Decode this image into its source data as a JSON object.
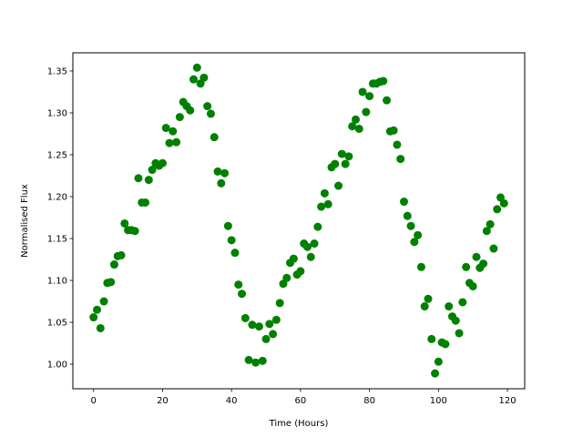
{
  "chart_data": {
    "type": "scatter",
    "title": "",
    "xlabel": "Time (Hours)",
    "ylabel": "Normalised Flux",
    "xlim": [
      -6,
      125
    ],
    "ylim": [
      0.9707,
      1.3717
    ],
    "xticks": [
      0,
      20,
      40,
      60,
      80,
      100,
      120
    ],
    "xtick_labels": [
      "0",
      "20",
      "40",
      "60",
      "80",
      "100",
      "120"
    ],
    "yticks": [
      1.0,
      1.05,
      1.1,
      1.15,
      1.2,
      1.25,
      1.3,
      1.35
    ],
    "ytick_labels": [
      "1.00",
      "1.05",
      "1.10",
      "1.15",
      "1.20",
      "1.25",
      "1.30",
      "1.35"
    ],
    "grid": false,
    "marker_color": "#008000",
    "x": [
      0,
      1,
      2,
      3,
      4,
      5,
      6,
      7,
      8,
      9,
      10,
      11,
      12,
      13,
      14,
      15,
      16,
      17,
      18,
      19,
      20,
      21,
      22,
      23,
      24,
      25,
      26,
      27,
      28,
      29,
      30,
      31,
      32,
      33,
      34,
      35,
      36,
      37,
      38,
      39,
      40,
      41,
      42,
      43,
      44,
      45,
      46,
      47,
      48,
      49,
      50,
      51,
      52,
      53,
      54,
      55,
      56,
      57,
      58,
      59,
      60,
      61,
      62,
      63,
      64,
      65,
      66,
      67,
      68,
      69,
      70,
      71,
      72,
      73,
      74,
      75,
      76,
      77,
      78,
      79,
      80,
      81,
      82,
      83,
      84,
      85,
      86,
      87,
      88,
      89,
      90,
      91,
      92,
      93,
      94,
      95,
      96,
      97,
      98,
      99,
      100,
      101,
      102,
      103,
      104,
      105,
      106,
      107,
      108,
      109,
      110,
      111,
      112,
      113,
      114,
      115,
      116,
      117,
      118,
      119
    ],
    "y": [
      1.056,
      1.065,
      1.043,
      1.075,
      1.097,
      1.098,
      1.119,
      1.129,
      1.13,
      1.168,
      1.16,
      1.16,
      1.159,
      1.222,
      1.193,
      1.193,
      1.22,
      1.232,
      1.24,
      1.237,
      1.24,
      1.282,
      1.264,
      1.278,
      1.265,
      1.295,
      1.313,
      1.308,
      1.303,
      1.34,
      1.354,
      1.335,
      1.342,
      1.308,
      1.299,
      1.271,
      1.23,
      1.216,
      1.228,
      1.165,
      1.148,
      1.133,
      1.095,
      1.084,
      1.055,
      1.005,
      1.047,
      1.002,
      1.045,
      1.004,
      1.03,
      1.048,
      1.036,
      1.053,
      1.073,
      1.096,
      1.103,
      1.121,
      1.126,
      1.107,
      1.111,
      1.144,
      1.14,
      1.128,
      1.144,
      1.164,
      1.188,
      1.204,
      1.191,
      1.235,
      1.239,
      1.213,
      1.251,
      1.239,
      1.248,
      1.284,
      1.292,
      1.281,
      1.325,
      1.301,
      1.32,
      1.335,
      1.335,
      1.337,
      1.338,
      1.315,
      1.278,
      1.279,
      1.262,
      1.245,
      1.194,
      1.177,
      1.165,
      1.146,
      1.154,
      1.116,
      1.069,
      1.078,
      1.03,
      0.989,
      1.003,
      1.026,
      1.024,
      1.069,
      1.057,
      1.052,
      1.037,
      1.074,
      1.116,
      1.097,
      1.093,
      1.128,
      1.115,
      1.12,
      1.159,
      1.167,
      1.138,
      1.185,
      1.199,
      1.192
    ]
  }
}
